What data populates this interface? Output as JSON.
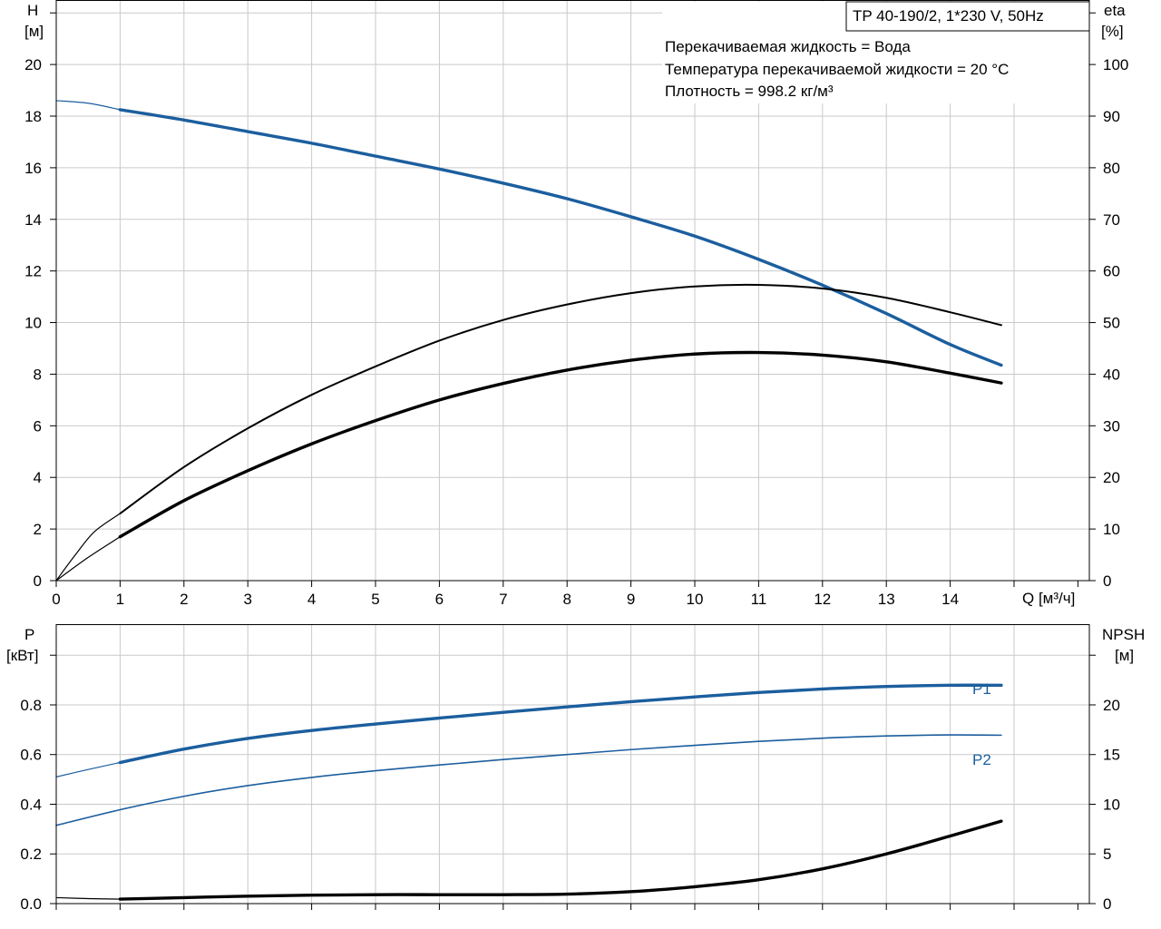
{
  "header": {
    "model": "TP 40-190/2, 1*230 V, 50Hz",
    "liquid": "Перекачиваемая жидкость = Вода",
    "temperature": "Температура перекачиваемой жидкости = 20 °C",
    "density": "Плотность = 998.2 кг/м³"
  },
  "colors": {
    "blue": "#1b5e9e",
    "black": "#000000",
    "grid": "#c9c9c9"
  },
  "chart_data": [
    {
      "type": "line",
      "name": "top",
      "y_left_label": [
        "H",
        "[м]"
      ],
      "y_right_label": [
        "eta",
        "[%]"
      ],
      "x_label": "Q [м³/ч]",
      "xlim": [
        0,
        16
      ],
      "x_ticks": [
        0,
        1,
        2,
        3,
        4,
        5,
        6,
        7,
        8,
        9,
        10,
        11,
        12,
        13,
        14
      ],
      "ylim_left": [
        0,
        22.5
      ],
      "y_ticks_left": [
        0,
        2,
        4,
        6,
        8,
        10,
        12,
        14,
        16,
        18,
        20
      ],
      "ylim_right": [
        0,
        112.5
      ],
      "y_ticks_right": [
        0,
        10,
        20,
        30,
        40,
        50,
        60,
        70,
        80,
        90,
        100
      ],
      "grid": true,
      "series": [
        {
          "id": "H",
          "axis": "left",
          "color": "#1b5e9e",
          "x": [
            1,
            2,
            3,
            4,
            5,
            6,
            7,
            8,
            9,
            10,
            11,
            12,
            13,
            14,
            14.8
          ],
          "values": [
            18.25,
            17.85,
            17.4,
            16.95,
            16.45,
            15.95,
            15.4,
            14.8,
            14.1,
            13.35,
            12.45,
            11.45,
            10.35,
            9.15,
            8.35
          ],
          "thin_extension": {
            "x": [
              0,
              0.5,
              1
            ],
            "values": [
              18.6,
              18.5,
              18.25
            ]
          }
        },
        {
          "id": "eta_thin",
          "axis": "right",
          "color": "#000000",
          "x": [
            1,
            2,
            3,
            4,
            5,
            6,
            7,
            8,
            9,
            10,
            11,
            12,
            13,
            14,
            14.8
          ],
          "values": [
            13,
            22,
            29.5,
            36,
            41.5,
            46.5,
            50.5,
            53.5,
            55.7,
            57,
            57.3,
            56.6,
            54.8,
            52,
            49.5
          ],
          "thin_extension": {
            "x": [
              0,
              0.3,
              0.6,
              1
            ],
            "values": [
              0,
              5,
              9.5,
              13
            ]
          }
        },
        {
          "id": "eta_thick",
          "axis": "right",
          "color": "#000000",
          "x": [
            1,
            2,
            3,
            4,
            5,
            6,
            7,
            8,
            9,
            10,
            11,
            12,
            13,
            14,
            14.8
          ],
          "values": [
            8.5,
            15.5,
            21.3,
            26.5,
            31,
            35,
            38.2,
            40.8,
            42.7,
            43.9,
            44.2,
            43.7,
            42.4,
            40.2,
            38.3
          ],
          "thin_extension": {
            "x": [
              0,
              0.5,
              1
            ],
            "values": [
              0,
              4.5,
              8.5
            ]
          }
        }
      ]
    },
    {
      "type": "line",
      "name": "bottom",
      "y_left_label": [
        "P",
        "[кВт]"
      ],
      "y_right_label": [
        "NPSH",
        "[м]"
      ],
      "xlim": [
        0,
        16
      ],
      "x_ticks": [
        0,
        1,
        2,
        3,
        4,
        5,
        6,
        7,
        8,
        9,
        10,
        11,
        12,
        13,
        14
      ],
      "ylim_left": [
        0,
        1.125
      ],
      "y_ticks_left": [
        0.0,
        0.2,
        0.4,
        0.6,
        0.8
      ],
      "y_tick_labels_left": [
        "0.0",
        "0.2",
        "0.4",
        "0.6",
        "0.8"
      ],
      "ylim_right": [
        0,
        28.125
      ],
      "y_ticks_right": [
        0,
        5,
        10,
        15,
        20
      ],
      "grid": true,
      "series": [
        {
          "id": "P1",
          "label": "P1",
          "axis": "left",
          "color": "#1b5e9e",
          "x": [
            1,
            2,
            3,
            4,
            5,
            6,
            7,
            8,
            9,
            10,
            11,
            12,
            13,
            14,
            14.8
          ],
          "values": [
            0.568,
            0.622,
            0.665,
            0.697,
            0.723,
            0.747,
            0.77,
            0.792,
            0.813,
            0.832,
            0.85,
            0.864,
            0.874,
            0.879,
            0.879
          ],
          "thin_extension": {
            "x": [
              0,
              0.5,
              1
            ],
            "values": [
              0.51,
              0.54,
              0.568
            ]
          }
        },
        {
          "id": "P2",
          "label": "P2",
          "axis": "left",
          "color": "#1b5e9e",
          "thin": true,
          "x": [
            0,
            1,
            2,
            3,
            4,
            5,
            6,
            7,
            8,
            9,
            10,
            11,
            12,
            13,
            14,
            14.8
          ],
          "values": [
            0.315,
            0.378,
            0.432,
            0.475,
            0.508,
            0.535,
            0.558,
            0.58,
            0.6,
            0.62,
            0.637,
            0.653,
            0.666,
            0.675,
            0.679,
            0.678
          ]
        },
        {
          "id": "NPSH",
          "axis": "right",
          "color": "#000000",
          "x": [
            1,
            2,
            3,
            4,
            5,
            6,
            7,
            8,
            9,
            10,
            11,
            12,
            13,
            14,
            14.8
          ],
          "values": [
            0.45,
            0.6,
            0.75,
            0.85,
            0.9,
            0.9,
            0.9,
            0.95,
            1.2,
            1.7,
            2.4,
            3.5,
            5.0,
            6.8,
            8.3
          ],
          "thin_extension": {
            "x": [
              0,
              0.5,
              1
            ],
            "values": [
              0.6,
              0.5,
              0.45
            ]
          }
        }
      ]
    }
  ]
}
